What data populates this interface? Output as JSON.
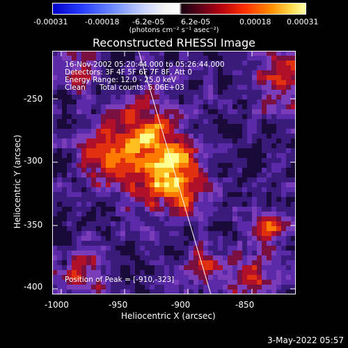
{
  "colorbar": {
    "ticks": [
      "-0.00031",
      "-0.00018",
      "-6.2e-05",
      "6.2e-05",
      "0.00018",
      "0.00031"
    ],
    "units": "(photons cm⁻² s⁻¹ asec⁻²)"
  },
  "title": "Reconstructed RHESSI Image",
  "info": {
    "time_range": "16-Nov-2002 05:20:44.000 to 05:26:44.000",
    "detectors": "Detectors: 3F 4F 5F 6F 7F 8F, Att 0",
    "energy": "Energy Range: 12.0 - 25.0 keV",
    "method": "Clean      Total counts: 5.06E+03",
    "peak": "Position of Peak = [-910,-323]"
  },
  "axes": {
    "xlabel": "Heliocentric X (arcsec)",
    "ylabel": "Heliocentric Y (arcsec)",
    "xticks": [
      "-1000",
      "-950",
      "-900",
      "-850"
    ],
    "yticks": [
      "-250",
      "-300",
      "-350",
      "-400"
    ]
  },
  "timestamp": "3-May-2022 05:57",
  "colors": {
    "background": "#000000",
    "limb_line": "#ffffff"
  }
}
